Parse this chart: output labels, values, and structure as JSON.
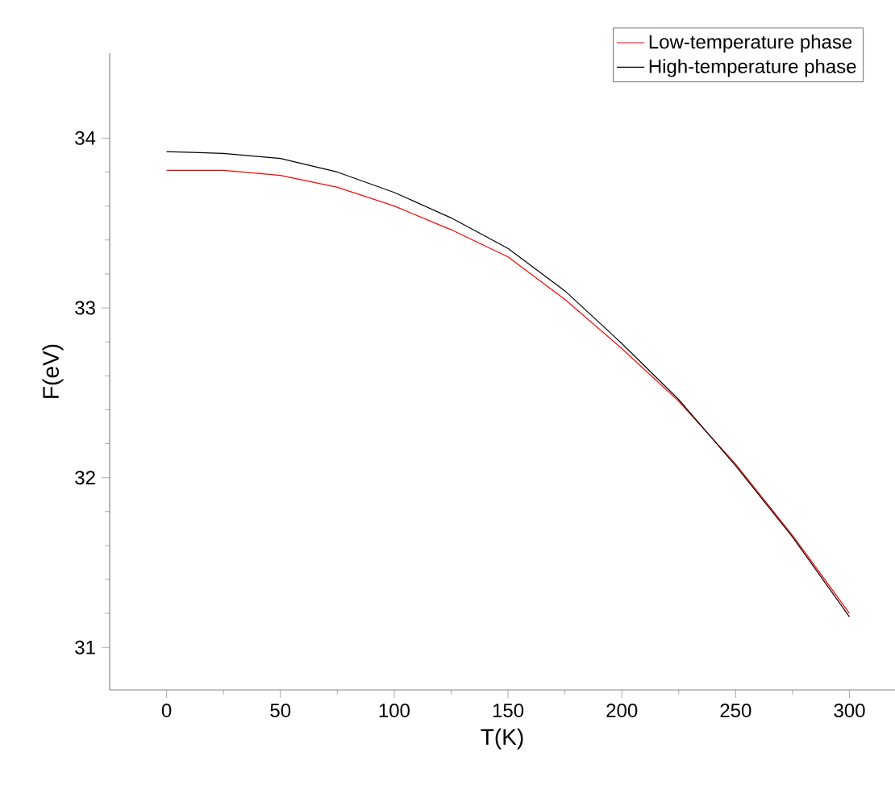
{
  "chart_data": {
    "type": "line",
    "xlabel": "T(K)",
    "ylabel": "F(eV)",
    "xlim": [
      -25,
      320
    ],
    "ylim": [
      30.75,
      34.5
    ],
    "xticks": [
      0,
      50,
      100,
      150,
      200,
      250,
      300
    ],
    "yticks": [
      31,
      32,
      33,
      34
    ],
    "x": [
      0,
      25,
      50,
      75,
      100,
      125,
      150,
      175,
      200,
      225,
      250,
      275,
      300
    ],
    "series": [
      {
        "name": "Low-temperature phase",
        "color": "#ff0000",
        "values": [
          33.81,
          33.81,
          33.78,
          33.71,
          33.6,
          33.46,
          33.3,
          33.05,
          32.76,
          32.45,
          32.08,
          31.66,
          31.2
        ]
      },
      {
        "name": "High-temperature phase",
        "color": "#000000",
        "values": [
          33.92,
          33.91,
          33.88,
          33.8,
          33.68,
          33.53,
          33.35,
          33.1,
          32.79,
          32.46,
          32.07,
          31.65,
          31.18
        ]
      }
    ],
    "legend": "top right",
    "grid": false,
    "marker": "none",
    "line_style": "solid"
  }
}
